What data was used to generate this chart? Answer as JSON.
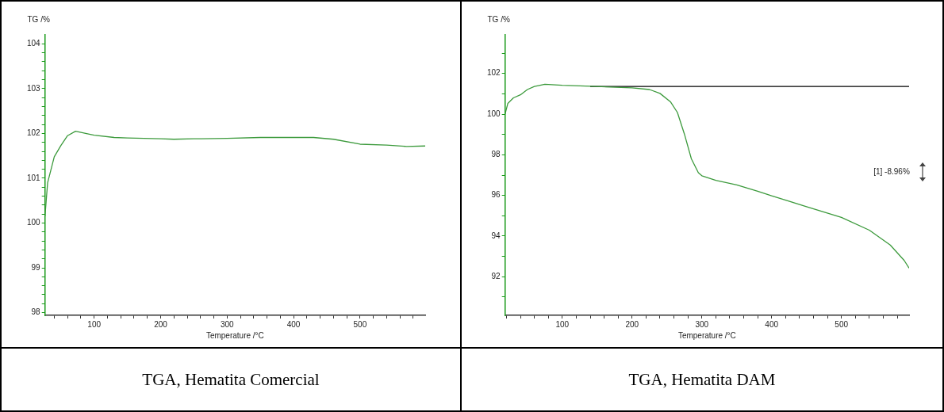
{
  "chart_data": [
    {
      "type": "line",
      "title": "TGA, Hematita Comercial",
      "xlabel": "Temperature /°C",
      "ylabel": "TG /%",
      "xlim": [
        26,
        598
      ],
      "ylim": [
        97.94,
        104.2
      ],
      "xticks": [
        {
          "value": 40,
          "label": null
        },
        {
          "value": 60,
          "label": null
        },
        {
          "value": 80,
          "label": null
        },
        100,
        {
          "value": 120,
          "label": null
        },
        {
          "value": 140,
          "label": null
        },
        {
          "value": 160,
          "label": null
        },
        {
          "value": 180,
          "label": null
        },
        200,
        {
          "value": 220,
          "label": null
        },
        {
          "value": 240,
          "label": null
        },
        {
          "value": 260,
          "label": null
        },
        {
          "value": 280,
          "label": null
        },
        300,
        {
          "value": 320,
          "label": null
        },
        {
          "value": 340,
          "label": null
        },
        {
          "value": 360,
          "label": null
        },
        {
          "value": 380,
          "label": null
        },
        400,
        {
          "value": 420,
          "label": null
        },
        {
          "value": 440,
          "label": null
        },
        {
          "value": 460,
          "label": null
        },
        {
          "value": 480,
          "label": null
        },
        500,
        {
          "value": 520,
          "label": null
        },
        {
          "value": 540,
          "label": null
        },
        {
          "value": 560,
          "label": null
        },
        {
          "value": 580,
          "label": null
        }
      ],
      "yticks": [
        98,
        {
          "value": 98.2,
          "label": null
        },
        {
          "value": 98.4,
          "label": null
        },
        {
          "value": 98.6,
          "label": null
        },
        {
          "value": 98.8,
          "label": null
        },
        99,
        {
          "value": 99.2,
          "label": null
        },
        {
          "value": 99.4,
          "label": null
        },
        {
          "value": 99.6,
          "label": null
        },
        {
          "value": 99.8,
          "label": null
        },
        100,
        {
          "value": 100.2,
          "label": null
        },
        {
          "value": 100.4,
          "label": null
        },
        {
          "value": 100.6,
          "label": null
        },
        {
          "value": 100.8,
          "label": null
        },
        101,
        {
          "value": 101.2,
          "label": null
        },
        {
          "value": 101.4,
          "label": null
        },
        {
          "value": 101.6,
          "label": null
        },
        {
          "value": 101.8,
          "label": null
        },
        102,
        {
          "value": 102.2,
          "label": null
        },
        {
          "value": 102.4,
          "label": null
        },
        {
          "value": 102.6,
          "label": null
        },
        {
          "value": 102.8,
          "label": null
        },
        103,
        {
          "value": 103.2,
          "label": null
        },
        {
          "value": 103.4,
          "label": null
        },
        {
          "value": 103.6,
          "label": null
        },
        {
          "value": 103.8,
          "label": null
        },
        104
      ],
      "grid": false,
      "legend": false,
      "marker": "none",
      "series": [
        {
          "color": "#3c9a3c",
          "x": [
            26,
            30,
            40,
            50,
            60,
            72,
            90,
            100,
            130,
            150,
            200,
            220,
            250,
            300,
            350,
            430,
            460,
            500,
            540,
            570,
            598
          ],
          "values": [
            100.15,
            100.9,
            101.48,
            101.73,
            101.95,
            102.05,
            101.99,
            101.96,
            101.91,
            101.9,
            101.88,
            101.87,
            101.88,
            101.89,
            101.91,
            101.91,
            101.87,
            101.76,
            101.74,
            101.71,
            101.72
          ]
        }
      ]
    },
    {
      "type": "line",
      "title": "TGA, Hematita DAM",
      "xlabel": "Temperature /°C",
      "ylabel": "TG /%",
      "xlim": [
        18,
        597
      ],
      "ylim": [
        90.1,
        103.9
      ],
      "xticks": [
        {
          "value": 20,
          "label": null
        },
        {
          "value": 40,
          "label": null
        },
        {
          "value": 60,
          "label": null
        },
        {
          "value": 80,
          "label": null
        },
        100,
        {
          "value": 120,
          "label": null
        },
        {
          "value": 140,
          "label": null
        },
        {
          "value": 160,
          "label": null
        },
        {
          "value": 180,
          "label": null
        },
        200,
        {
          "value": 220,
          "label": null
        },
        {
          "value": 240,
          "label": null
        },
        {
          "value": 260,
          "label": null
        },
        {
          "value": 280,
          "label": null
        },
        300,
        {
          "value": 320,
          "label": null
        },
        {
          "value": 340,
          "label": null
        },
        {
          "value": 360,
          "label": null
        },
        {
          "value": 380,
          "label": null
        },
        400,
        {
          "value": 420,
          "label": null
        },
        {
          "value": 440,
          "label": null
        },
        {
          "value": 460,
          "label": null
        },
        {
          "value": 480,
          "label": null
        },
        500,
        {
          "value": 520,
          "label": null
        },
        {
          "value": 540,
          "label": null
        },
        {
          "value": 560,
          "label": null
        },
        {
          "value": 580,
          "label": null
        }
      ],
      "yticks": [
        {
          "value": 91,
          "label": null
        },
        92,
        {
          "value": 93,
          "label": null
        },
        94,
        {
          "value": 95,
          "label": null
        },
        96,
        {
          "value": 97,
          "label": null
        },
        98,
        {
          "value": 99,
          "label": null
        },
        100,
        {
          "value": 101,
          "label": null
        },
        102,
        {
          "value": 103,
          "label": null
        }
      ],
      "grid": false,
      "legend": false,
      "marker": "none",
      "annotations": [
        "[1] -8.96%"
      ],
      "series": [
        {
          "color": "#3c9a3c",
          "x": [
            18,
            22,
            30,
            40,
            50,
            60,
            75,
            100,
            150,
            200,
            225,
            240,
            255,
            265,
            275,
            285,
            295,
            300,
            320,
            350,
            380,
            400,
            450,
            500,
            540,
            570,
            590,
            597
          ],
          "values": [
            100.0,
            100.53,
            100.8,
            100.95,
            101.21,
            101.36,
            101.47,
            101.42,
            101.36,
            101.29,
            101.21,
            101.02,
            100.61,
            100.08,
            99.02,
            97.8,
            97.12,
            96.97,
            96.74,
            96.52,
            96.21,
            95.98,
            95.45,
            94.92,
            94.29,
            93.56,
            92.8,
            92.42
          ]
        },
        {
          "color": "#000000",
          "x": [
            140,
            597
          ],
          "values": [
            101.36,
            101.36
          ]
        }
      ]
    }
  ]
}
